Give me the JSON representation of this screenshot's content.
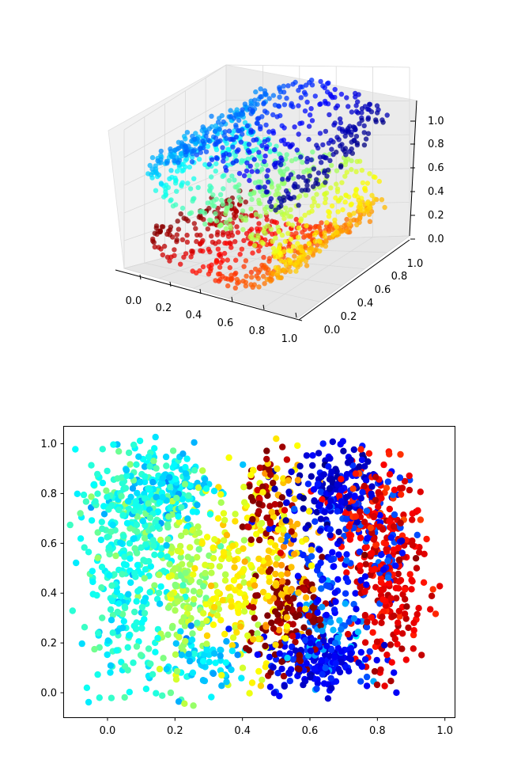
{
  "chart_data": [
    {
      "type": "scatter",
      "projection": "3d",
      "title": "",
      "x_ticks": [
        "0.0",
        "0.2",
        "0.4",
        "0.6",
        "0.8",
        "1.0"
      ],
      "y_ticks": [
        "0.0",
        "0.2",
        "0.4",
        "0.6",
        "0.8",
        "1.0"
      ],
      "z_ticks": [
        "0.0",
        "0.2",
        "0.4",
        "0.6",
        "0.8",
        "1.0"
      ],
      "xlim": [
        0,
        1
      ],
      "ylim": [
        0,
        1
      ],
      "zlim": [
        0,
        1
      ],
      "grid": true,
      "colormap": "jet",
      "shape": "swiss roll / S-shaped surface colored by position along the curve",
      "point_count_estimate": 1500
    },
    {
      "type": "scatter",
      "title": "",
      "x_ticks": [
        "0.0",
        "0.2",
        "0.4",
        "0.6",
        "0.8",
        "1.0"
      ],
      "y_ticks": [
        "0.0",
        "0.2",
        "0.4",
        "0.6",
        "0.8",
        "1.0"
      ],
      "xlim": [
        -0.13,
        1.03
      ],
      "ylim": [
        -0.1,
        1.07
      ],
      "grid": false,
      "colormap": "jet",
      "point_count_estimate": 1500,
      "regions": [
        {
          "color": "#7fff7f",
          "x": [
            -0.1,
            0.15
          ],
          "y": [
            0.05,
            0.95
          ],
          "label_color": "green"
        },
        {
          "color": "#00e4f8",
          "x": [
            0.08,
            0.35
          ],
          "y": [
            0.6,
            0.96
          ],
          "label_color": "cyan"
        },
        {
          "color": "#d4ff21",
          "x": [
            0.15,
            0.33
          ],
          "y": [
            0.05,
            0.75
          ],
          "label_color": "yellow-green"
        },
        {
          "color": "#ffd200",
          "x": [
            0.3,
            0.58
          ],
          "y": [
            0.1,
            0.8
          ],
          "label_color": "yellow"
        },
        {
          "color": "#0000d0",
          "x": [
            0.45,
            0.8
          ],
          "y": [
            0.0,
            1.02
          ],
          "label_color": "blue"
        },
        {
          "color": "#8b0000",
          "x": [
            0.4,
            0.75
          ],
          "y": [
            0.1,
            0.9
          ],
          "label_color": "dark red"
        },
        {
          "color": "#ff4a00",
          "x": [
            0.7,
            0.95
          ],
          "y": [
            0.1,
            0.85
          ],
          "label_color": "orange-red"
        }
      ]
    }
  ]
}
